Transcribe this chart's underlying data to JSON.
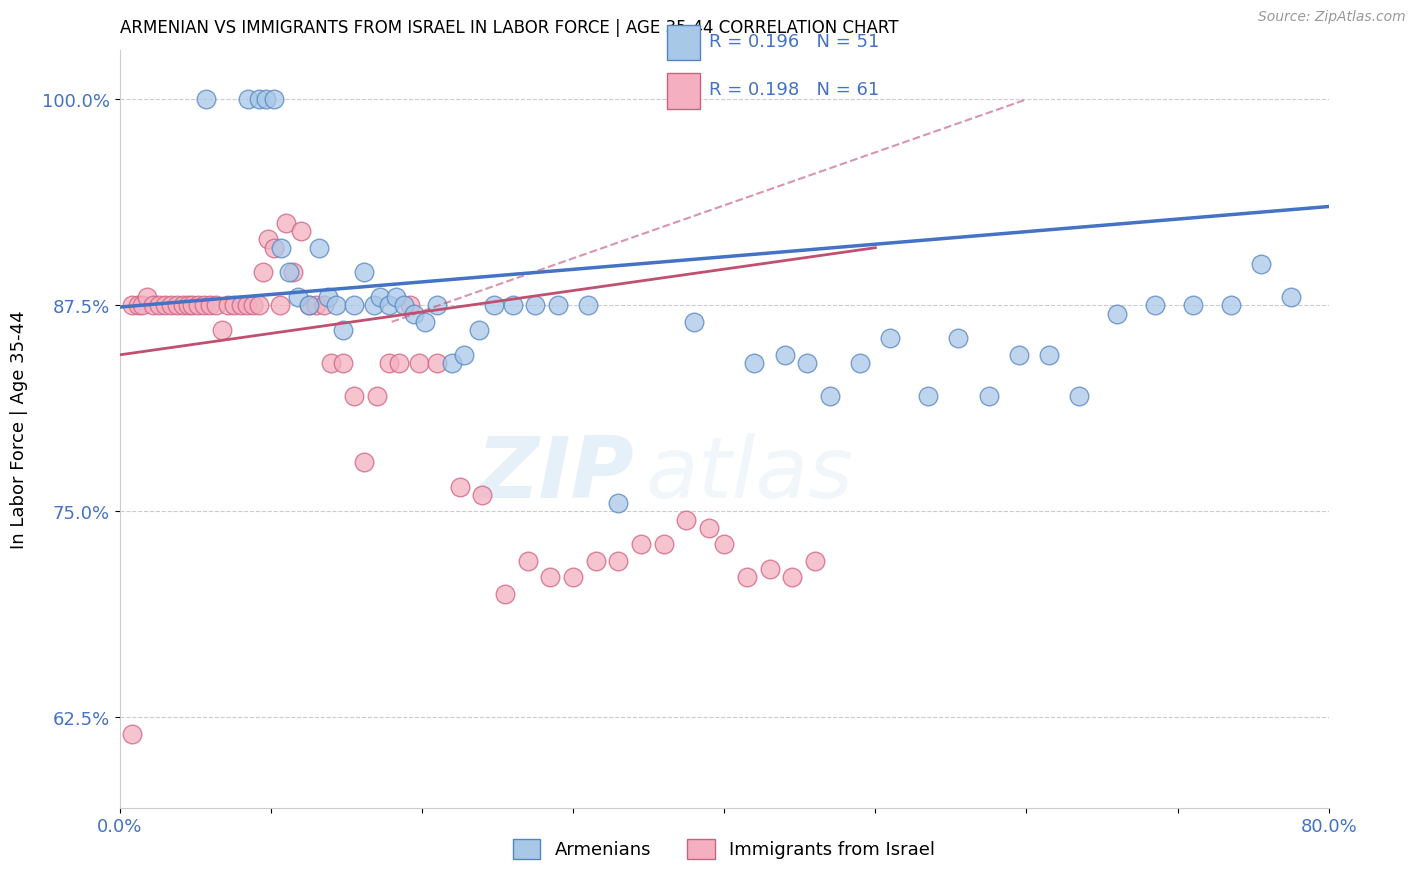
{
  "title": "ARMENIAN VS IMMIGRANTS FROM ISRAEL IN LABOR FORCE | AGE 35-44 CORRELATION CHART",
  "source": "Source: ZipAtlas.com",
  "ylabel": "In Labor Force | Age 35-44",
  "xlim": [
    0.0,
    0.8
  ],
  "ylim": [
    0.57,
    1.03
  ],
  "yticks": [
    0.625,
    0.75,
    0.875,
    1.0
  ],
  "ytick_labels": [
    "62.5%",
    "75.0%",
    "87.5%",
    "100.0%"
  ],
  "xticks": [
    0.0,
    0.1,
    0.2,
    0.3,
    0.4,
    0.5,
    0.6,
    0.7,
    0.8
  ],
  "xtick_labels": [
    "0.0%",
    "",
    "",
    "",
    "",
    "",
    "",
    "",
    "80.0%"
  ],
  "blue_R": 0.196,
  "blue_N": 51,
  "pink_R": 0.198,
  "pink_N": 61,
  "blue_color": "#a8c8e8",
  "pink_color": "#f4b0c0",
  "blue_edge_color": "#5585C0",
  "pink_edge_color": "#D06080",
  "blue_line_color": "#4472C4",
  "pink_line_color": "#C05070",
  "ref_line_color": "#e0a0a8",
  "background_color": "#ffffff",
  "grid_color": "#cccccc",
  "axis_color": "#4472C4",
  "blue_scatter_x": [
    0.057,
    0.085,
    0.092,
    0.097,
    0.102,
    0.107,
    0.112,
    0.118,
    0.125,
    0.132,
    0.138,
    0.143,
    0.148,
    0.155,
    0.162,
    0.168,
    0.172,
    0.178,
    0.183,
    0.188,
    0.195,
    0.202,
    0.21,
    0.22,
    0.228,
    0.238,
    0.248,
    0.26,
    0.275,
    0.29,
    0.31,
    0.33,
    0.38,
    0.42,
    0.44,
    0.455,
    0.47,
    0.49,
    0.51,
    0.535,
    0.555,
    0.575,
    0.595,
    0.615,
    0.635,
    0.66,
    0.685,
    0.71,
    0.735,
    0.755,
    0.775
  ],
  "blue_scatter_y": [
    1.0,
    1.0,
    1.0,
    1.0,
    1.0,
    0.91,
    0.895,
    0.88,
    0.875,
    0.91,
    0.88,
    0.875,
    0.86,
    0.875,
    0.895,
    0.875,
    0.88,
    0.875,
    0.88,
    0.875,
    0.87,
    0.865,
    0.875,
    0.84,
    0.845,
    0.86,
    0.875,
    0.875,
    0.875,
    0.875,
    0.875,
    0.755,
    0.865,
    0.84,
    0.845,
    0.84,
    0.82,
    0.84,
    0.855,
    0.82,
    0.855,
    0.82,
    0.845,
    0.845,
    0.82,
    0.87,
    0.875,
    0.875,
    0.875,
    0.9,
    0.88
  ],
  "pink_scatter_x": [
    0.008,
    0.012,
    0.015,
    0.018,
    0.022,
    0.026,
    0.03,
    0.034,
    0.038,
    0.042,
    0.045,
    0.048,
    0.052,
    0.056,
    0.06,
    0.064,
    0.068,
    0.072,
    0.076,
    0.08,
    0.084,
    0.088,
    0.092,
    0.095,
    0.098,
    0.102,
    0.106,
    0.11,
    0.115,
    0.12,
    0.125,
    0.13,
    0.135,
    0.14,
    0.148,
    0.155,
    0.162,
    0.17,
    0.178,
    0.185,
    0.192,
    0.198,
    0.21,
    0.225,
    0.24,
    0.255,
    0.27,
    0.285,
    0.3,
    0.315,
    0.33,
    0.345,
    0.36,
    0.375,
    0.39,
    0.4,
    0.415,
    0.43,
    0.445,
    0.46,
    0.008
  ],
  "pink_scatter_y": [
    0.875,
    0.875,
    0.875,
    0.88,
    0.875,
    0.875,
    0.875,
    0.875,
    0.875,
    0.875,
    0.875,
    0.875,
    0.875,
    0.875,
    0.875,
    0.875,
    0.86,
    0.875,
    0.875,
    0.875,
    0.875,
    0.875,
    0.875,
    0.895,
    0.915,
    0.91,
    0.875,
    0.925,
    0.895,
    0.92,
    0.875,
    0.875,
    0.875,
    0.84,
    0.84,
    0.82,
    0.78,
    0.82,
    0.84,
    0.84,
    0.875,
    0.84,
    0.84,
    0.765,
    0.76,
    0.7,
    0.72,
    0.71,
    0.71,
    0.72,
    0.72,
    0.73,
    0.73,
    0.745,
    0.74,
    0.73,
    0.71,
    0.715,
    0.71,
    0.72,
    0.615
  ],
  "watermark_zip": "ZIP",
  "watermark_atlas": "atlas",
  "legend_items": [
    "Armenians",
    "Immigrants from Israel"
  ]
}
